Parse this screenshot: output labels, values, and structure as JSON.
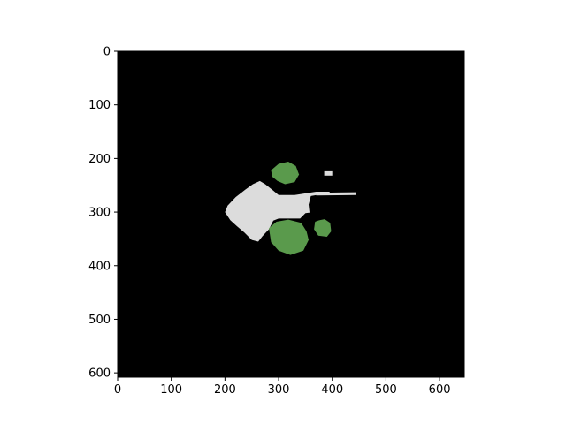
{
  "chart_data": {
    "type": "heatmap",
    "title": "",
    "xlabel": "",
    "ylabel": "",
    "xlim": [
      0,
      646
    ],
    "ylim": [
      608,
      0
    ],
    "x_ticks": [
      0,
      100,
      200,
      300,
      400,
      500,
      600
    ],
    "y_ticks": [
      0,
      100,
      200,
      300,
      400,
      500,
      600
    ],
    "x_tick_labels": [
      "0",
      "100",
      "200",
      "300",
      "400",
      "500",
      "600"
    ],
    "y_tick_labels": [
      "0",
      "100",
      "200",
      "300",
      "400",
      "500",
      "600"
    ],
    "grid": false,
    "legend": false,
    "colors": {
      "background": "#000000",
      "free_space": "#dcdcdc",
      "vegetation": "#5a9a4c"
    },
    "regions": [
      {
        "name": "free-space-arrow",
        "color_key": "free_space",
        "polygon": [
          [
            200,
            300
          ],
          [
            205,
            288
          ],
          [
            220,
            272
          ],
          [
            238,
            258
          ],
          [
            252,
            248
          ],
          [
            265,
            242
          ],
          [
            275,
            248
          ],
          [
            290,
            260
          ],
          [
            300,
            268
          ],
          [
            330,
            268
          ],
          [
            370,
            262
          ],
          [
            395,
            262
          ],
          [
            395,
            270
          ],
          [
            380,
            272
          ],
          [
            365,
            275
          ],
          [
            365,
            285
          ],
          [
            380,
            287
          ],
          [
            380,
            297
          ],
          [
            365,
            300
          ],
          [
            350,
            302
          ],
          [
            340,
            312
          ],
          [
            300,
            312
          ],
          [
            290,
            316
          ],
          [
            282,
            332
          ],
          [
            270,
            345
          ],
          [
            262,
            355
          ],
          [
            250,
            352
          ],
          [
            236,
            338
          ],
          [
            222,
            326
          ],
          [
            210,
            315
          ]
        ]
      },
      {
        "name": "vegetation-upper",
        "color_key": "vegetation",
        "polygon": [
          [
            286,
            222
          ],
          [
            300,
            210
          ],
          [
            318,
            206
          ],
          [
            332,
            214
          ],
          [
            338,
            230
          ],
          [
            330,
            244
          ],
          [
            312,
            248
          ],
          [
            298,
            242
          ],
          [
            288,
            234
          ]
        ]
      },
      {
        "name": "vegetation-lower",
        "color_key": "vegetation",
        "polygon": [
          [
            282,
            330
          ],
          [
            296,
            318
          ],
          [
            318,
            314
          ],
          [
            342,
            320
          ],
          [
            352,
            336
          ],
          [
            356,
            352
          ],
          [
            346,
            372
          ],
          [
            322,
            380
          ],
          [
            300,
            372
          ],
          [
            286,
            356
          ]
        ]
      },
      {
        "name": "vegetation-right",
        "color_key": "vegetation",
        "polygon": [
          [
            368,
            318
          ],
          [
            384,
            312
          ],
          [
            396,
            320
          ],
          [
            398,
            336
          ],
          [
            390,
            346
          ],
          [
            374,
            344
          ],
          [
            366,
            332
          ]
        ]
      },
      {
        "name": "obstacle-cluster-right",
        "color_key": "background",
        "polygon": [
          [
            360,
            270
          ],
          [
            395,
            264
          ],
          [
            405,
            276
          ],
          [
            402,
            300
          ],
          [
            392,
            312
          ],
          [
            372,
            316
          ],
          [
            358,
            304
          ],
          [
            356,
            286
          ]
        ]
      },
      {
        "name": "free-space-bright-strip",
        "color_key": "free_space",
        "polygon": [
          [
            370,
            264
          ],
          [
            445,
            263
          ],
          [
            445,
            268
          ],
          [
            370,
            269
          ]
        ]
      },
      {
        "name": "free-space-bright-corner",
        "color_key": "free_space",
        "polygon": [
          [
            385,
            224
          ],
          [
            400,
            224
          ],
          [
            400,
            232
          ],
          [
            385,
            232
          ]
        ]
      }
    ]
  }
}
